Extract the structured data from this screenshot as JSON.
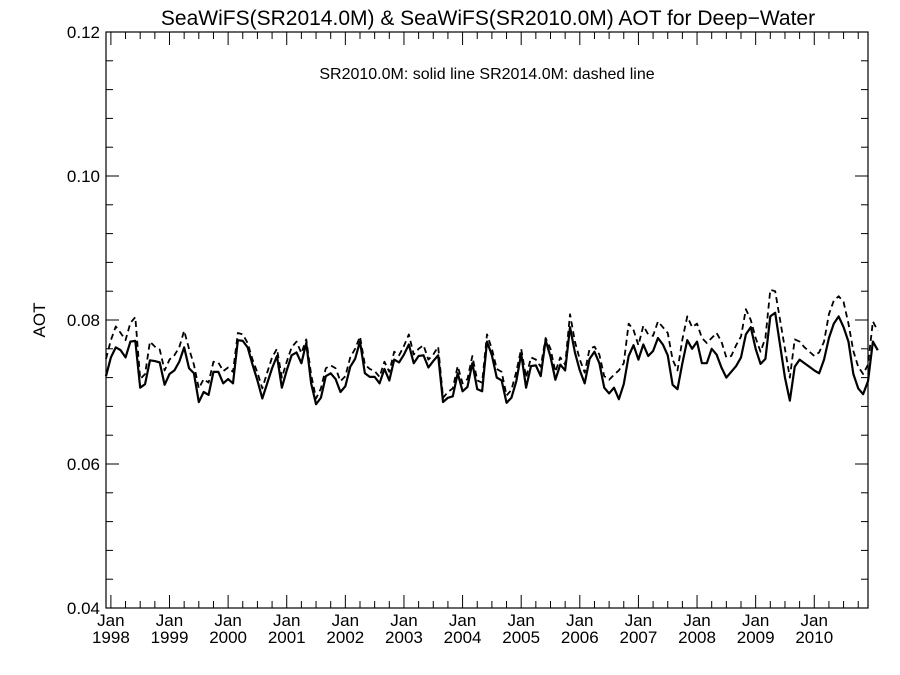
{
  "chart_data": {
    "type": "line",
    "title": "SeaWiFS(SR2014.0M) & SeaWiFS(SR2010.0M)  AOT for Deep−Water",
    "ylabel": "AOT",
    "xlabel": "",
    "annotation": "SR2010.0M: solid line   SR2014.0M: dashed line",
    "xlim": [
      "1997-12",
      "2010-12"
    ],
    "ylim": [
      0.04,
      0.12
    ],
    "y_ticks": [
      "0.04",
      "0.06",
      "0.08",
      "0.10",
      "0.12"
    ],
    "x_tick_top": "Jan",
    "x_tick_years": [
      "1998",
      "1999",
      "2000",
      "2001",
      "2002",
      "2003",
      "2004",
      "2005",
      "2006",
      "2007",
      "2008",
      "2009",
      "2010"
    ],
    "grid": false,
    "line_color": "#000000",
    "series": [
      {
        "name": "SR2010.0M",
        "style": "solid",
        "start": "1997-12",
        "values": [
          0.0722,
          0.0748,
          0.0762,
          0.0758,
          0.0748,
          0.077,
          0.0771,
          0.0706,
          0.0711,
          0.0744,
          0.0743,
          0.0741,
          0.071,
          0.0725,
          0.073,
          0.0742,
          0.0762,
          0.0733,
          0.0726,
          0.0686,
          0.07,
          0.0696,
          0.0728,
          0.0728,
          0.0712,
          0.0718,
          0.0712,
          0.0772,
          0.0771,
          0.0762,
          0.0738,
          0.0716,
          0.0691,
          0.0712,
          0.0733,
          0.075,
          0.0706,
          0.073,
          0.0751,
          0.0755,
          0.074,
          0.0768,
          0.0712,
          0.0683,
          0.0692,
          0.0722,
          0.0726,
          0.0718,
          0.07,
          0.0708,
          0.0735,
          0.0746,
          0.077,
          0.0726,
          0.0721,
          0.0721,
          0.0712,
          0.0732,
          0.0716,
          0.0745,
          0.0741,
          0.0752,
          0.0766,
          0.074,
          0.075,
          0.0751,
          0.0734,
          0.0743,
          0.0751,
          0.0686,
          0.0692,
          0.0694,
          0.0726,
          0.0701,
          0.0707,
          0.074,
          0.0704,
          0.0701,
          0.077,
          0.0751,
          0.072,
          0.0716,
          0.0685,
          0.0692,
          0.0715,
          0.0753,
          0.0706,
          0.0736,
          0.0737,
          0.0722,
          0.0772,
          0.0749,
          0.0717,
          0.0738,
          0.073,
          0.079,
          0.0755,
          0.073,
          0.0712,
          0.0746,
          0.0756,
          0.074,
          0.0706,
          0.0698,
          0.0706,
          0.069,
          0.0711,
          0.075,
          0.0765,
          0.0745,
          0.0766,
          0.075,
          0.0757,
          0.0775,
          0.0766,
          0.0751,
          0.071,
          0.0704,
          0.074,
          0.0772,
          0.076,
          0.077,
          0.074,
          0.074,
          0.076,
          0.0752,
          0.0734,
          0.072,
          0.0728,
          0.0736,
          0.0748,
          0.078,
          0.079,
          0.076,
          0.0739,
          0.0746,
          0.0805,
          0.081,
          0.0765,
          0.072,
          0.0688,
          0.0735,
          0.0745,
          0.074,
          0.0735,
          0.073,
          0.0726,
          0.0745,
          0.0775,
          0.0795,
          0.0805,
          0.079,
          0.077,
          0.0725,
          0.0705,
          0.0697,
          0.0715,
          0.077,
          0.0758
        ]
      },
      {
        "name": "SR2014.0M",
        "style": "dashed",
        "start": "1997-12",
        "values": [
          0.0746,
          0.0772,
          0.0791,
          0.0782,
          0.0772,
          0.0796,
          0.0804,
          0.0718,
          0.0725,
          0.077,
          0.0763,
          0.0759,
          0.073,
          0.0745,
          0.0751,
          0.0762,
          0.0785,
          0.076,
          0.0738,
          0.0705,
          0.0718,
          0.0713,
          0.0742,
          0.0741,
          0.0729,
          0.0734,
          0.0728,
          0.0782,
          0.078,
          0.0768,
          0.0745,
          0.0727,
          0.0705,
          0.0727,
          0.0748,
          0.076,
          0.072,
          0.0742,
          0.0762,
          0.077,
          0.0754,
          0.0773,
          0.0724,
          0.0691,
          0.0705,
          0.0733,
          0.0737,
          0.0733,
          0.0715,
          0.0722,
          0.0748,
          0.076,
          0.0777,
          0.0738,
          0.0732,
          0.0729,
          0.0721,
          0.0742,
          0.0728,
          0.0756,
          0.0751,
          0.0764,
          0.078,
          0.0752,
          0.076,
          0.0765,
          0.0745,
          0.0752,
          0.0763,
          0.0692,
          0.07,
          0.0705,
          0.0736,
          0.0712,
          0.0718,
          0.075,
          0.0716,
          0.0713,
          0.078,
          0.076,
          0.0732,
          0.0728,
          0.0695,
          0.0703,
          0.0728,
          0.076,
          0.072,
          0.0748,
          0.0745,
          0.0735,
          0.0775,
          0.076,
          0.0728,
          0.0748,
          0.0738,
          0.0808,
          0.077,
          0.0745,
          0.0727,
          0.076,
          0.0763,
          0.0752,
          0.0722,
          0.0717,
          0.0724,
          0.073,
          0.074,
          0.0795,
          0.0786,
          0.0765,
          0.0792,
          0.078,
          0.0778,
          0.0798,
          0.079,
          0.0782,
          0.0745,
          0.073,
          0.0773,
          0.0805,
          0.079,
          0.0795,
          0.0775,
          0.0768,
          0.0775,
          0.0782,
          0.077,
          0.0748,
          0.075,
          0.0765,
          0.0777,
          0.0815,
          0.08,
          0.0775,
          0.0756,
          0.0775,
          0.0842,
          0.084,
          0.08,
          0.076,
          0.072,
          0.0773,
          0.077,
          0.0762,
          0.0756,
          0.075,
          0.0755,
          0.077,
          0.0808,
          0.0827,
          0.0833,
          0.0825,
          0.0795,
          0.0757,
          0.0735,
          0.0725,
          0.0738,
          0.0798,
          0.0785
        ]
      }
    ]
  }
}
